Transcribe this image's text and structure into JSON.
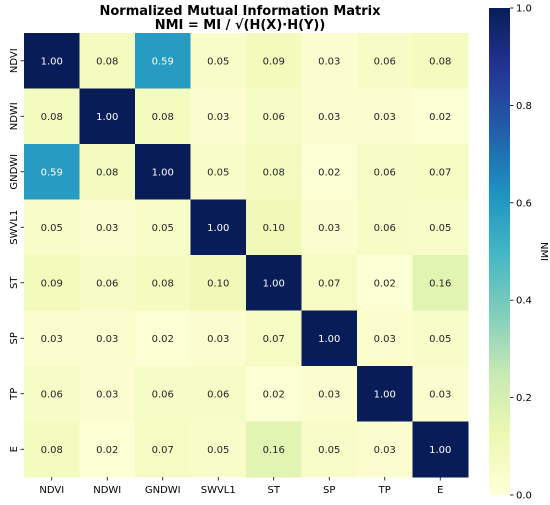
{
  "chart_data": {
    "type": "heatmap",
    "title_line1": "Normalized Mutual Information Matrix",
    "title_line2": "NMI = MI / √(H(X)·H(Y))",
    "row_labels": [
      "NDVI",
      "NDWI",
      "GNDWI",
      "SWVL1",
      "ST",
      "SP",
      "TP",
      "E"
    ],
    "col_labels": [
      "NDVI",
      "NDWI",
      "GNDWI",
      "SWVL1",
      "ST",
      "SP",
      "TP",
      "E"
    ],
    "values": [
      [
        1.0,
        0.08,
        0.59,
        0.05,
        0.09,
        0.03,
        0.06,
        0.08
      ],
      [
        0.08,
        1.0,
        0.08,
        0.03,
        0.06,
        0.03,
        0.03,
        0.02
      ],
      [
        0.59,
        0.08,
        1.0,
        0.05,
        0.08,
        0.02,
        0.06,
        0.07
      ],
      [
        0.05,
        0.03,
        0.05,
        1.0,
        0.1,
        0.03,
        0.06,
        0.05
      ],
      [
        0.09,
        0.06,
        0.08,
        0.1,
        1.0,
        0.07,
        0.02,
        0.16
      ],
      [
        0.03,
        0.03,
        0.02,
        0.03,
        0.07,
        1.0,
        0.03,
        0.05
      ],
      [
        0.06,
        0.03,
        0.06,
        0.06,
        0.02,
        0.03,
        1.0,
        0.03
      ],
      [
        0.08,
        0.02,
        0.07,
        0.05,
        0.16,
        0.05,
        0.03,
        1.0
      ]
    ],
    "colormap": "YlGnBu",
    "vmin": 0.0,
    "vmax": 1.0,
    "colorbar_label": "NMI",
    "colorbar_ticks": [
      "0.0",
      "0.2",
      "0.4",
      "0.6",
      "0.8",
      "1.0"
    ]
  }
}
